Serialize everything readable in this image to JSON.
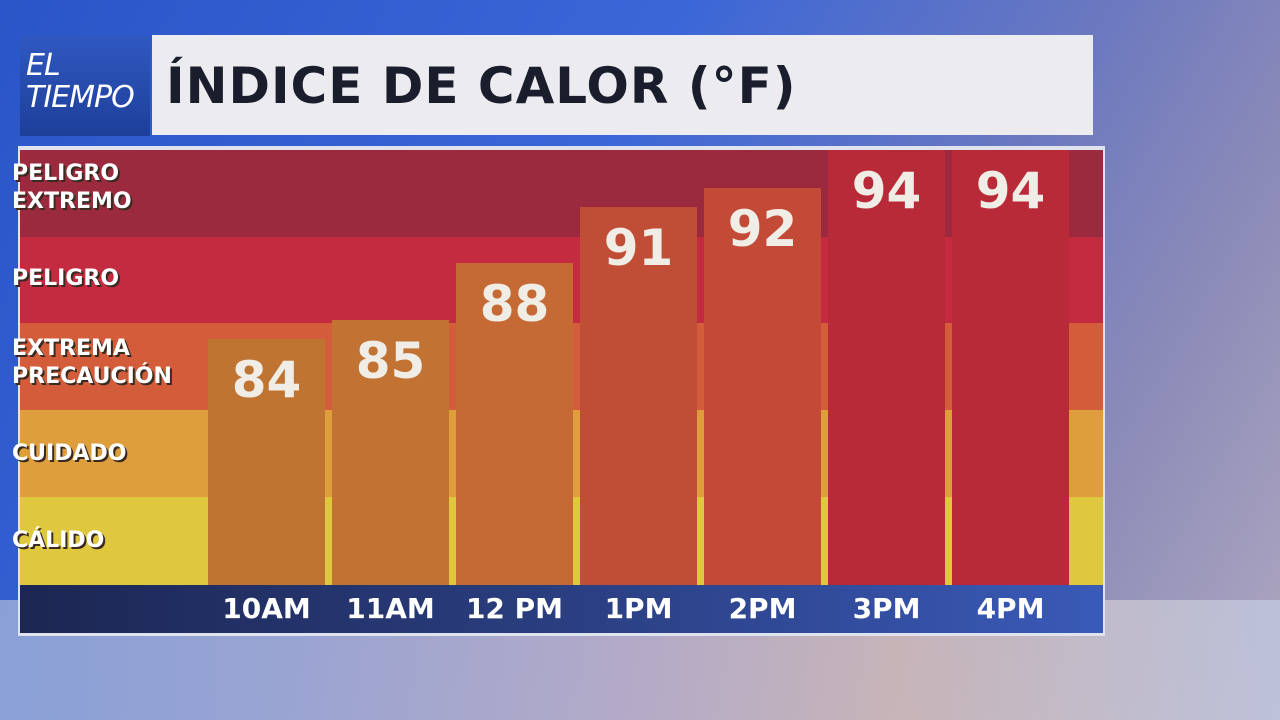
{
  "logo": {
    "line1": "EL",
    "line2": "TIEMPO"
  },
  "chart_data": {
    "type": "bar",
    "title": "ÍNDICE DE CALOR (°F)",
    "categories": [
      "10AM",
      "11AM",
      "12 PM",
      "1PM",
      "2PM",
      "3PM",
      "4PM"
    ],
    "values": [
      84,
      85,
      88,
      91,
      92,
      94,
      94
    ],
    "ylim": [
      71,
      94
    ],
    "bands": [
      {
        "label": "PELIGRO EXTREMO",
        "color": "#9c2a3f"
      },
      {
        "label": "PELIGRO",
        "color": "#c42b40"
      },
      {
        "label": "EXTREMA PRECAUCIÓN",
        "color": "#d35d3a"
      },
      {
        "label": "CUIDADO",
        "color": "#de9e3c"
      },
      {
        "label": "CÁLIDO",
        "color": "#dfc83e"
      }
    ],
    "bar_colors": [
      "#bf7432",
      "#c27333",
      "#c56a34",
      "#c04d36",
      "#c24a36",
      "#b82a37",
      "#b82a37"
    ]
  }
}
